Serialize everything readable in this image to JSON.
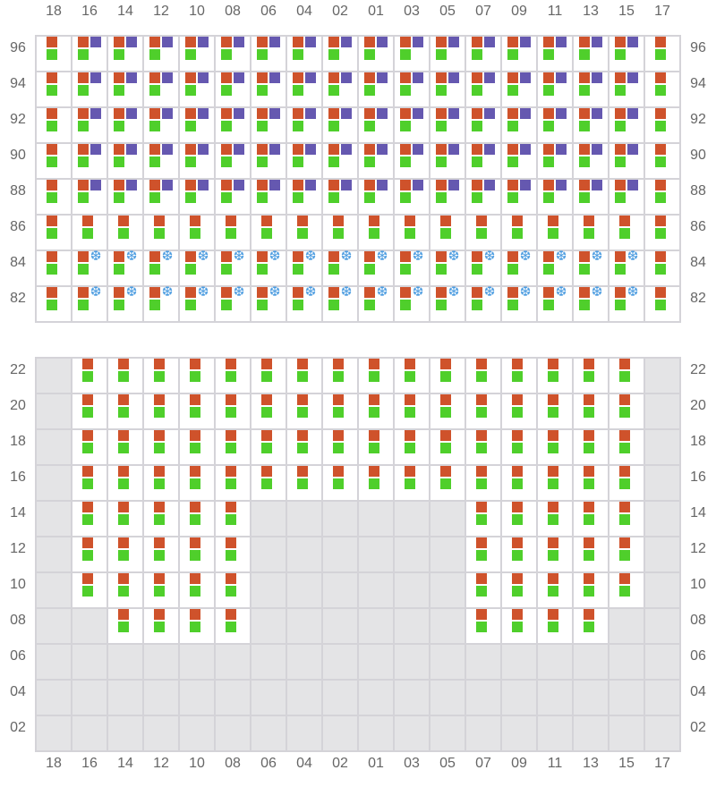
{
  "columns": [
    "18",
    "16",
    "14",
    "12",
    "10",
    "08",
    "06",
    "04",
    "02",
    "01",
    "03",
    "05",
    "07",
    "09",
    "11",
    "13",
    "15",
    "17"
  ],
  "colors": {
    "orange": "#cf522b",
    "green": "#4fcf2b",
    "purple": "#6558b0",
    "snowflake": "#4a9be0",
    "unavailable": "#e4e4e6",
    "grid": "#d4d3d8"
  },
  "top_section": {
    "rows": [
      {
        "label": "96",
        "extra": "purple"
      },
      {
        "label": "94",
        "extra": "purple"
      },
      {
        "label": "92",
        "extra": "purple"
      },
      {
        "label": "90",
        "extra": "purple"
      },
      {
        "label": "88",
        "extra": "purple"
      },
      {
        "label": "86",
        "extra": "none"
      },
      {
        "label": "84",
        "extra": "snowflake-icon"
      },
      {
        "label": "82",
        "extra": "snowflake-icon"
      }
    ],
    "plain_columns": [
      "18",
      "17"
    ]
  },
  "bottom_section": {
    "rows": [
      {
        "label": "22",
        "available": "011111111111111110"
      },
      {
        "label": "20",
        "available": "011111111111111110"
      },
      {
        "label": "18",
        "available": "011111111111111110"
      },
      {
        "label": "16",
        "available": "011111111111111110"
      },
      {
        "label": "14",
        "available": "011111000000111110"
      },
      {
        "label": "12",
        "available": "011111000000111110"
      },
      {
        "label": "10",
        "available": "011111000000111110"
      },
      {
        "label": "08",
        "available": "001111000000111100"
      },
      {
        "label": "06",
        "available": "000000000000000000"
      },
      {
        "label": "04",
        "available": "000000000000000000"
      },
      {
        "label": "02",
        "available": "000000000000000000"
      }
    ]
  }
}
